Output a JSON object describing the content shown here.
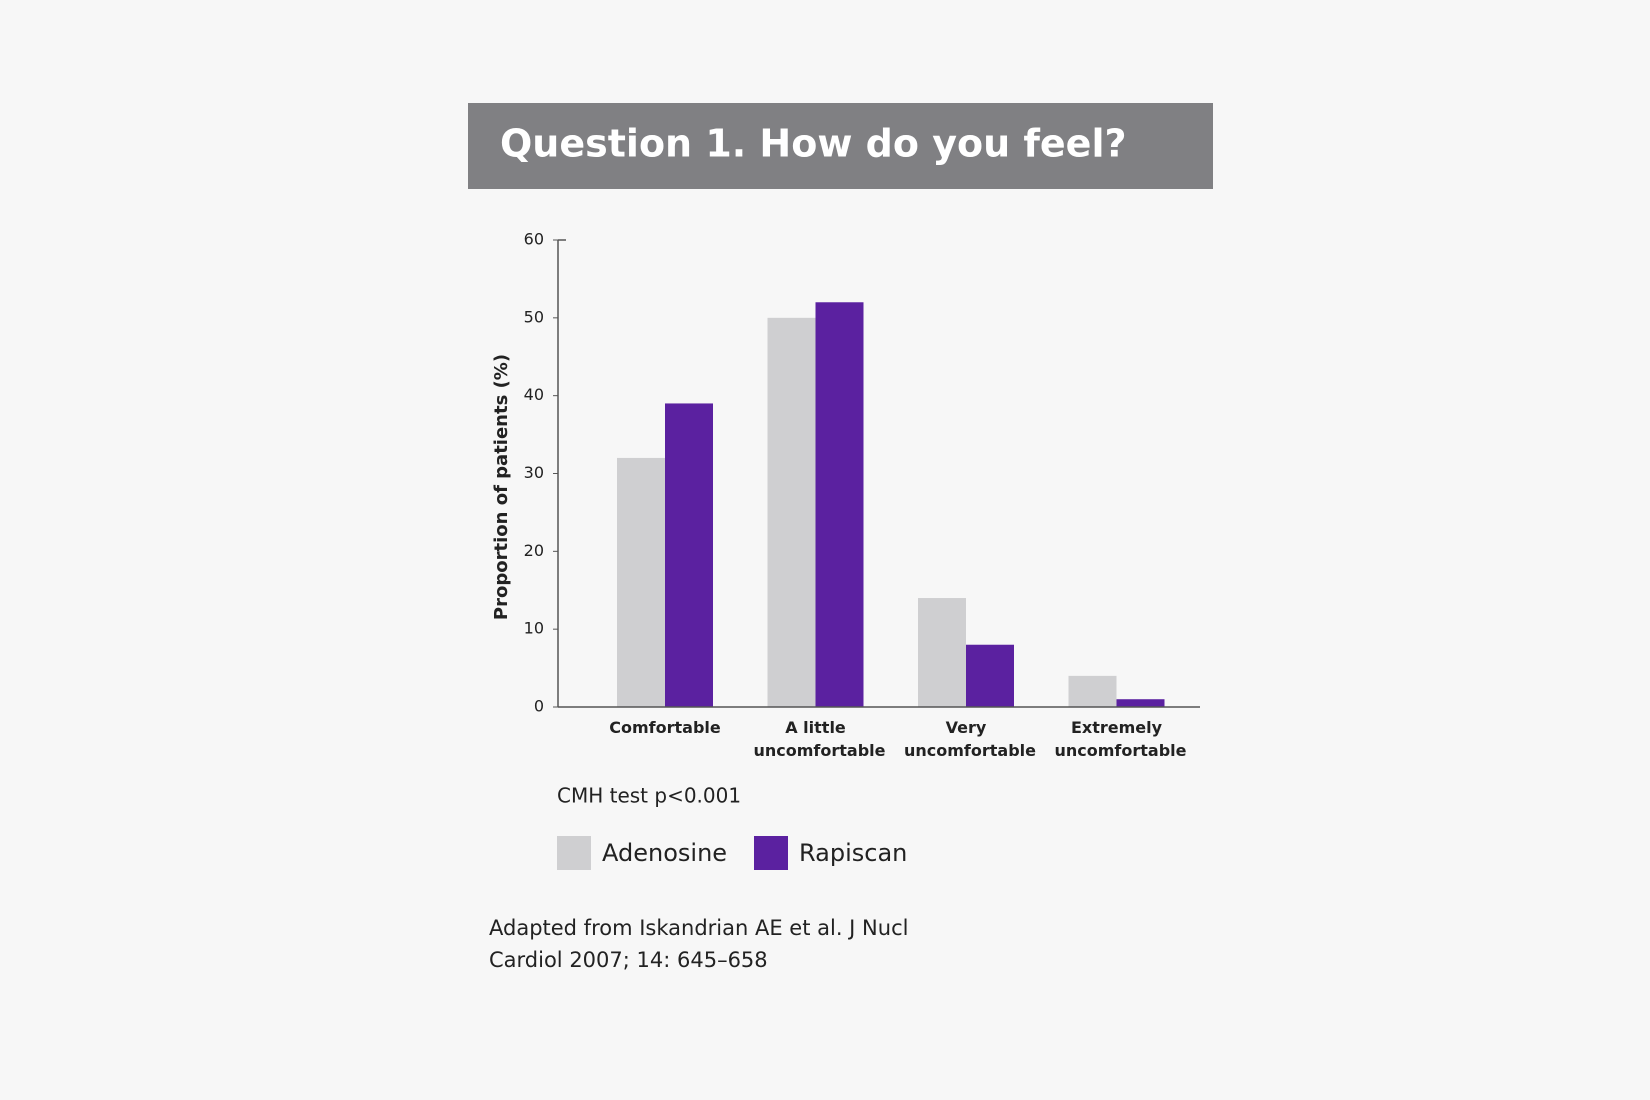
{
  "chart_data": {
    "type": "bar",
    "title": "Question 1. How do you feel?",
    "y_label": "Proportion of patients (%)",
    "categories": [
      "Comfortable",
      "A little uncomfortable",
      "Very uncomfortable",
      "Extremely uncomfortable"
    ],
    "series": [
      {
        "name": "Adenosine",
        "color": "#cfcfd1",
        "values": [
          32,
          50,
          14,
          4
        ]
      },
      {
        "name": "Rapiscan",
        "color": "#5b21a0",
        "values": [
          39,
          52,
          8,
          1
        ]
      }
    ],
    "ylim": [
      0,
      60
    ],
    "yticks": [
      0,
      10,
      20,
      30,
      40,
      50,
      60
    ],
    "grid": false,
    "annotation": "CMH test p<0.001",
    "source": "Adapted from Iskandrian AE et al. J Nucl Cardiol 2007; 14: 645–658"
  }
}
